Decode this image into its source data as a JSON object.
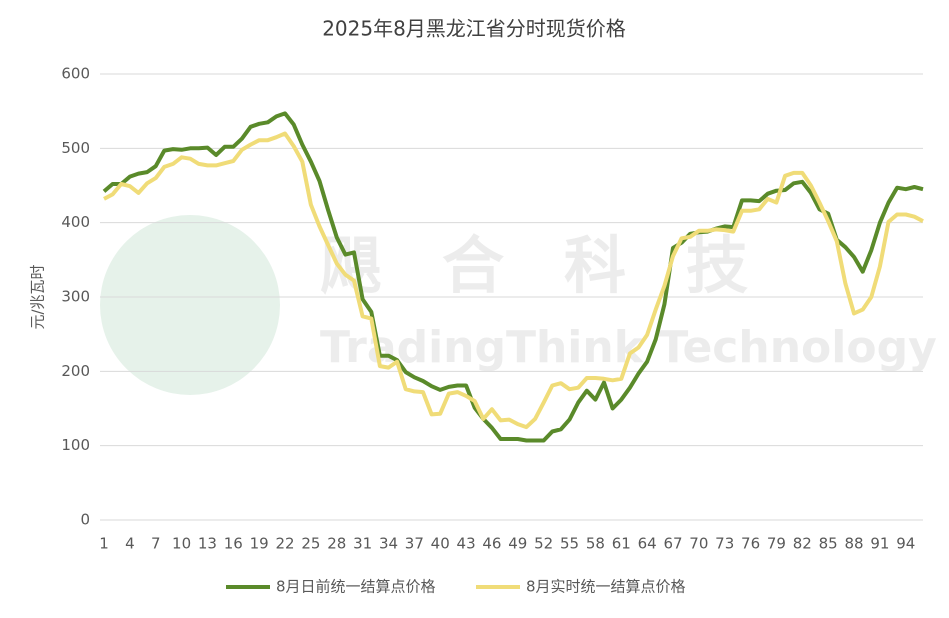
{
  "chart_data": {
    "type": "line",
    "title": "2025年8月黑龙江省分时现货价格",
    "y_label": "元/兆瓦时",
    "watermark": [
      "飓合科技",
      "TradingThink Technology"
    ],
    "x": [
      1,
      2,
      3,
      4,
      5,
      6,
      7,
      8,
      9,
      10,
      11,
      12,
      13,
      14,
      15,
      16,
      17,
      18,
      19,
      20,
      21,
      22,
      23,
      24,
      25,
      26,
      27,
      28,
      29,
      30,
      31,
      32,
      33,
      34,
      35,
      36,
      37,
      38,
      39,
      40,
      41,
      42,
      43,
      44,
      45,
      46,
      47,
      48,
      49,
      50,
      51,
      52,
      53,
      54,
      55,
      56,
      57,
      58,
      59,
      60,
      61,
      62,
      63,
      64,
      65,
      66,
      67,
      68,
      69,
      70,
      71,
      72,
      73,
      74,
      75,
      76,
      77,
      78,
      79,
      80,
      81,
      82,
      83,
      84,
      85,
      86,
      87,
      88,
      89,
      90,
      91,
      92,
      93,
      94,
      95,
      96
    ],
    "xlim": [
      1,
      96
    ],
    "xticks": [
      1,
      4,
      7,
      10,
      13,
      16,
      19,
      22,
      25,
      28,
      31,
      34,
      37,
      40,
      43,
      46,
      49,
      52,
      55,
      58,
      61,
      64,
      67,
      70,
      73,
      76,
      79,
      82,
      85,
      88,
      91,
      94
    ],
    "ylim": [
      0,
      600
    ],
    "yticks": [
      0,
      100,
      200,
      300,
      400,
      500,
      600
    ],
    "grid": true,
    "legend": "bottom",
    "series": [
      {
        "name": "8月日前统一结算点价格",
        "color": "#5a8a2a",
        "values": [
          442,
          452,
          452,
          462,
          466,
          468,
          476,
          497,
          499,
          498,
          500,
          500,
          501,
          491,
          502,
          502,
          513,
          529,
          533,
          535,
          543,
          547,
          532,
          505,
          482,
          456,
          417,
          380,
          357,
          360,
          297,
          280,
          221,
          221,
          215,
          199,
          192,
          187,
          180,
          175,
          179,
          181,
          181,
          151,
          136,
          124,
          109,
          109,
          109,
          107,
          107,
          107,
          119,
          122,
          135,
          158,
          174,
          162,
          185,
          150,
          162,
          178,
          197,
          213,
          243,
          290,
          366,
          373,
          385,
          387,
          388,
          392,
          395,
          394,
          430,
          430,
          429,
          439,
          443,
          444,
          453,
          455,
          440,
          418,
          412,
          377,
          367,
          354,
          334,
          363,
          400,
          427,
          447,
          445,
          448,
          445
        ]
      },
      {
        "name": "8月实时统一结算点价格",
        "color": "#f0dc78",
        "values": [
          432,
          438,
          452,
          449,
          440,
          453,
          460,
          475,
          479,
          488,
          486,
          479,
          477,
          477,
          480,
          483,
          498,
          505,
          511,
          511,
          515,
          520,
          503,
          482,
          424,
          395,
          370,
          345,
          330,
          322,
          274,
          271,
          207,
          205,
          213,
          176,
          173,
          172,
          142,
          143,
          170,
          172,
          167,
          160,
          136,
          149,
          134,
          135,
          129,
          125,
          136,
          158,
          181,
          184,
          176,
          178,
          191,
          191,
          190,
          188,
          190,
          224,
          232,
          249,
          283,
          315,
          355,
          379,
          381,
          389,
          389,
          391,
          390,
          388,
          416,
          416,
          418,
          432,
          427,
          463,
          467,
          467,
          450,
          427,
          402,
          375,
          318,
          278,
          283,
          300,
          341,
          401,
          411,
          411,
          408,
          402
        ]
      }
    ]
  }
}
